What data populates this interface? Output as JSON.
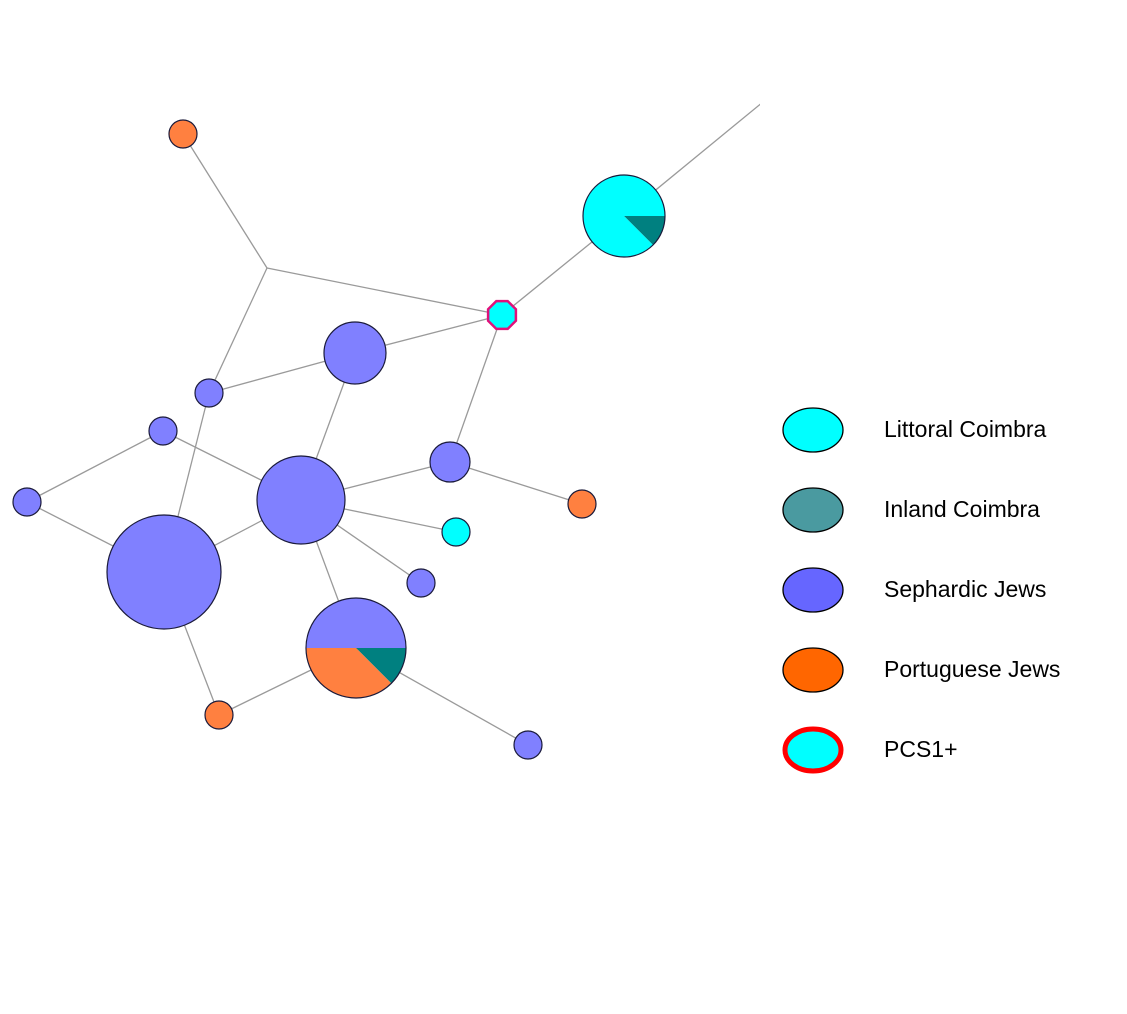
{
  "colors": {
    "littoral": "#00ffff",
    "inland": "#008080",
    "sephardic": "#8080ff",
    "portuguese": "#ff8040",
    "highlight": "#e0107a",
    "legend_inland": "#4a9aa0",
    "legend_sephardic": "#6666ff",
    "legend_portuguese": "#ff6600",
    "legend_pcs_ring": "#ff0000"
  },
  "legend": {
    "items": [
      {
        "key": "littoral",
        "label": "Littoral Coimbra"
      },
      {
        "key": "inland",
        "label": "Inland Coimbra"
      },
      {
        "key": "sephardic",
        "label": "Sephardic Jews"
      },
      {
        "key": "portuguese",
        "label": "Portuguese Jews"
      },
      {
        "key": "pcs1",
        "label": "PCS1+"
      }
    ]
  },
  "network": {
    "nodes": [
      {
        "id": "n-top-right",
        "size": 1,
        "composition": [
          {
            "group": "sephardic",
            "fraction": 1
          }
        ]
      },
      {
        "id": "n-big-cyan",
        "size": 6,
        "composition": [
          {
            "group": "littoral",
            "fraction": 0.875
          },
          {
            "group": "inland",
            "fraction": 0.125
          }
        ]
      },
      {
        "id": "n-pcs-junction",
        "size": 1,
        "pcs1": true,
        "composition": [
          {
            "group": "littoral",
            "fraction": 1
          }
        ]
      },
      {
        "id": "n-orange-top",
        "size": 1,
        "composition": [
          {
            "group": "portuguese",
            "fraction": 1
          }
        ]
      },
      {
        "id": "n-median",
        "size": 0,
        "composition": []
      },
      {
        "id": "n-blue-upper",
        "size": 3,
        "composition": [
          {
            "group": "sephardic",
            "fraction": 1
          }
        ]
      },
      {
        "id": "n-blue-small-a",
        "size": 1,
        "composition": [
          {
            "group": "sephardic",
            "fraction": 1
          }
        ]
      },
      {
        "id": "n-blue-small-b",
        "size": 1,
        "composition": [
          {
            "group": "sephardic",
            "fraction": 1
          }
        ]
      },
      {
        "id": "n-blue-left",
        "size": 1,
        "composition": [
          {
            "group": "sephardic",
            "fraction": 1
          }
        ]
      },
      {
        "id": "n-blue-center",
        "size": 6,
        "composition": [
          {
            "group": "sephardic",
            "fraction": 1
          }
        ]
      },
      {
        "id": "n-blue-right",
        "size": 2,
        "composition": [
          {
            "group": "sephardic",
            "fraction": 1
          }
        ]
      },
      {
        "id": "n-orange-right",
        "size": 1,
        "composition": [
          {
            "group": "portuguese",
            "fraction": 1
          }
        ]
      },
      {
        "id": "n-cyan-small",
        "size": 1,
        "composition": [
          {
            "group": "littoral",
            "fraction": 1
          }
        ]
      },
      {
        "id": "n-blue-small-c",
        "size": 1,
        "composition": [
          {
            "group": "sephardic",
            "fraction": 1
          }
        ]
      },
      {
        "id": "n-blue-largest",
        "size": 10,
        "composition": [
          {
            "group": "sephardic",
            "fraction": 1
          }
        ]
      },
      {
        "id": "n-mixed",
        "size": 8,
        "composition": [
          {
            "group": "sephardic",
            "fraction": 0.5
          },
          {
            "group": "inland",
            "fraction": 0.125
          },
          {
            "group": "portuguese",
            "fraction": 0.375
          }
        ]
      },
      {
        "id": "n-orange-bottom",
        "size": 1,
        "composition": [
          {
            "group": "portuguese",
            "fraction": 1
          }
        ]
      },
      {
        "id": "n-blue-bottom",
        "size": 1,
        "composition": [
          {
            "group": "sephardic",
            "fraction": 1
          }
        ]
      }
    ],
    "edges": [
      [
        "n-top-right",
        "n-big-cyan"
      ],
      [
        "n-big-cyan",
        "n-pcs-junction"
      ],
      [
        "n-orange-top",
        "n-median"
      ],
      [
        "n-median",
        "n-pcs-junction"
      ],
      [
        "n-median",
        "n-blue-small-a"
      ],
      [
        "n-pcs-junction",
        "n-blue-upper"
      ],
      [
        "n-pcs-junction",
        "n-blue-right"
      ],
      [
        "n-blue-upper",
        "n-blue-small-a"
      ],
      [
        "n-blue-upper",
        "n-blue-center"
      ],
      [
        "n-blue-small-a",
        "n-blue-largest"
      ],
      [
        "n-blue-small-b",
        "n-blue-left"
      ],
      [
        "n-blue-small-b",
        "n-blue-center"
      ],
      [
        "n-blue-left",
        "n-blue-largest"
      ],
      [
        "n-blue-largest",
        "n-blue-center"
      ],
      [
        "n-blue-center",
        "n-blue-right"
      ],
      [
        "n-blue-right",
        "n-orange-right"
      ],
      [
        "n-blue-center",
        "n-cyan-small"
      ],
      [
        "n-blue-center",
        "n-blue-small-c"
      ],
      [
        "n-blue-center",
        "n-mixed"
      ],
      [
        "n-blue-largest",
        "n-orange-bottom"
      ],
      [
        "n-mixed",
        "n-orange-bottom"
      ],
      [
        "n-mixed",
        "n-blue-bottom"
      ]
    ]
  }
}
